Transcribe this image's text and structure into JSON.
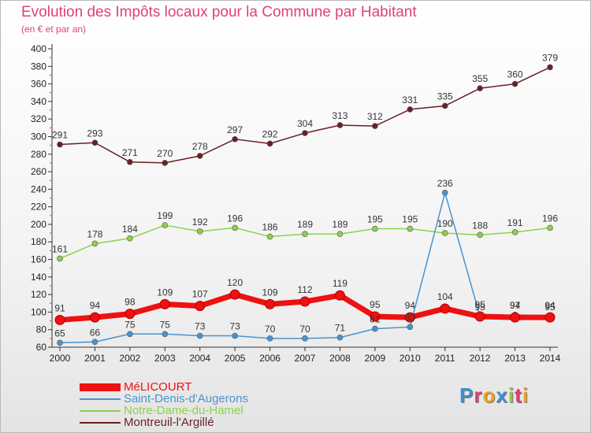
{
  "header": {
    "title": "Evolution des Impôts locaux pour la Commune par Habitant",
    "subtitle": "(en € et par an)"
  },
  "brand": {
    "logo_text": "Proxiti",
    "letter_colors": [
      "#3f8fd0",
      "#e03a7a",
      "#f0a020",
      "#3f8fd0",
      "#8cc63f",
      "#e03a7a",
      "#f0a020"
    ]
  },
  "chart_data": {
    "type": "line",
    "title": "Evolution des Impôts locaux pour la Commune par Habitant",
    "subtitle": "(en € et par an)",
    "xlabel": "",
    "ylabel": "",
    "x": [
      2000,
      2001,
      2002,
      2003,
      2004,
      2005,
      2006,
      2007,
      2008,
      2009,
      2010,
      2011,
      2012,
      2013,
      2014
    ],
    "ylim": [
      60,
      400
    ],
    "yticks": [
      60,
      80,
      100,
      120,
      140,
      160,
      180,
      200,
      220,
      240,
      260,
      280,
      300,
      320,
      340,
      360,
      380,
      400
    ],
    "grid": false,
    "legend_position": "bottom-left",
    "series": [
      {
        "name": "Montreuil-l'Argillé",
        "color": "#6b1f26",
        "values": [
          291,
          293,
          271,
          270,
          278,
          297,
          292,
          304,
          313,
          312,
          331,
          335,
          355,
          360,
          379
        ],
        "labels": [
          "291",
          "293",
          "271",
          "270",
          "278",
          "297",
          "292",
          "304",
          "313",
          "312",
          "331",
          "335",
          "355",
          "360",
          "379"
        ]
      },
      {
        "name": "Notre-Dame-du-Hamel",
        "color": "#8cd14a",
        "values": [
          161,
          178,
          184,
          199,
          192,
          196,
          186,
          189,
          189,
          195,
          195,
          190,
          188,
          191,
          196
        ],
        "labels": [
          "161",
          "178",
          "184",
          "199",
          "192",
          "196",
          "186",
          "189",
          "189",
          "195",
          "195",
          "190",
          "188",
          "191",
          "196"
        ]
      },
      {
        "name": "Saint-Denis-d'Augerons",
        "color": "#4a93cf",
        "values": [
          65,
          66,
          75,
          75,
          73,
          73,
          70,
          70,
          71,
          81,
          83,
          236,
          95,
          97,
          95
        ],
        "labels": [
          "65",
          "66",
          "75",
          "75",
          "73",
          "73",
          "70",
          "70",
          "71",
          "81",
          "83",
          "236",
          "95",
          "97",
          "95"
        ]
      },
      {
        "name": "MéLICOURT",
        "color": "#ee1111",
        "values": [
          91,
          94,
          98,
          109,
          107,
          120,
          109,
          112,
          119,
          95,
          94,
          104,
          95,
          94,
          94
        ],
        "labels": [
          "91",
          "94",
          "98",
          "109",
          "107",
          "120",
          "109",
          "112",
          "119",
          "95",
          "94",
          "104",
          "95",
          "94",
          "94"
        ]
      }
    ]
  }
}
